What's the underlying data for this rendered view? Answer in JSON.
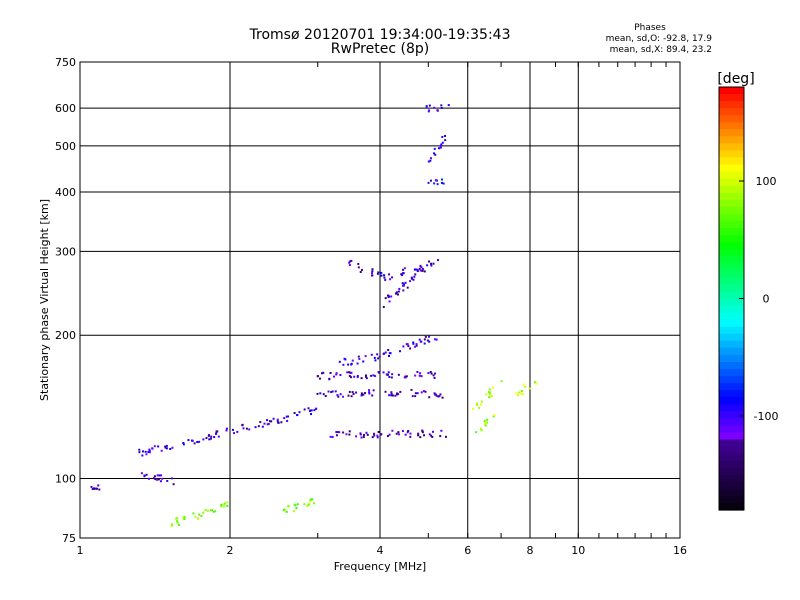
{
  "chart_data": {
    "type": "scatter",
    "title": "Tromsø 20120701 19:34:00-19:35:43",
    "subtitle": "RwPretec (8p)",
    "xlabel": "Frequency [MHz]",
    "ylabel": "Stationary phase Virtual Height [km]",
    "x_scale": "log",
    "y_scale": "log",
    "xlim": [
      1,
      16
    ],
    "ylim": [
      75,
      750
    ],
    "x_ticks": [
      1,
      2,
      4,
      6,
      8,
      10,
      16
    ],
    "x_tick_labels": [
      "1",
      "2",
      "4",
      "6",
      "8",
      "10",
      "16"
    ],
    "y_ticks": [
      75,
      100,
      200,
      300,
      400,
      500,
      600,
      750
    ],
    "y_tick_labels": [
      "75",
      "100",
      "200",
      "300",
      "400",
      "500",
      "600",
      "750"
    ],
    "grid": true,
    "stats": {
      "heading": "Phases",
      "line_o": "mean, sd,O: -92.8, 17.9",
      "line_x": "mean, sd,X:  89.4, 23.2"
    },
    "colorbar": {
      "label": "[deg]",
      "range": [
        -180,
        180
      ],
      "ticks": [
        100,
        0,
        -100
      ],
      "tick_labels": [
        "100",
        "0",
        "-100"
      ],
      "colormap": "rainbow"
    },
    "traces": [
      {
        "segments": [
          [
            1.05,
            97,
            1.1,
            95
          ],
          [
            1.3,
            103,
            1.55,
            98
          ]
        ],
        "phase": -110
      },
      {
        "segments": [
          [
            1.3,
            113,
            1.6,
            118
          ],
          [
            1.6,
            118,
            2.0,
            126
          ],
          [
            2.0,
            126,
            2.5,
            132
          ],
          [
            2.5,
            132,
            3.0,
            140
          ]
        ],
        "phase": -105
      },
      {
        "segments": [
          [
            3.0,
            150,
            4.0,
            152
          ],
          [
            4.0,
            152,
            5.3,
            150
          ]
        ],
        "phase": -115
      },
      {
        "segments": [
          [
            3.0,
            164,
            4.0,
            165
          ],
          [
            4.0,
            165,
            5.2,
            165
          ]
        ],
        "phase": -110
      },
      {
        "segments": [
          [
            3.2,
            124,
            4.5,
            124
          ],
          [
            4.5,
            124,
            5.4,
            124
          ]
        ],
        "phase": -120
      },
      {
        "segments": [
          [
            3.3,
            175,
            4.0,
            180
          ],
          [
            4.0,
            180,
            5.3,
            200
          ]
        ],
        "phase": -100
      },
      {
        "segments": [
          [
            3.4,
            285,
            4.1,
            265
          ],
          [
            4.1,
            265,
            5.0,
            280
          ]
        ],
        "phase": -105
      },
      {
        "segments": [
          [
            4.0,
            230,
            5.2,
            290
          ]
        ],
        "phase": -110
      },
      {
        "segments": [
          [
            4.9,
            420,
            5.4,
            420
          ],
          [
            4.9,
            600,
            5.5,
            600
          ],
          [
            5.0,
            460,
            5.4,
            520
          ]
        ],
        "phase": -95
      },
      {
        "segments": [
          [
            6.2,
            125,
            6.8,
            135
          ],
          [
            6.2,
            140,
            7.0,
            160
          ]
        ],
        "phase": 90
      },
      {
        "segments": [
          [
            7.5,
            150,
            8.2,
            160
          ]
        ],
        "phase": 95
      },
      {
        "segments": [
          [
            1.5,
            80,
            2.0,
            88
          ],
          [
            2.5,
            85,
            3.0,
            90
          ]
        ],
        "phase": 80
      }
    ]
  }
}
